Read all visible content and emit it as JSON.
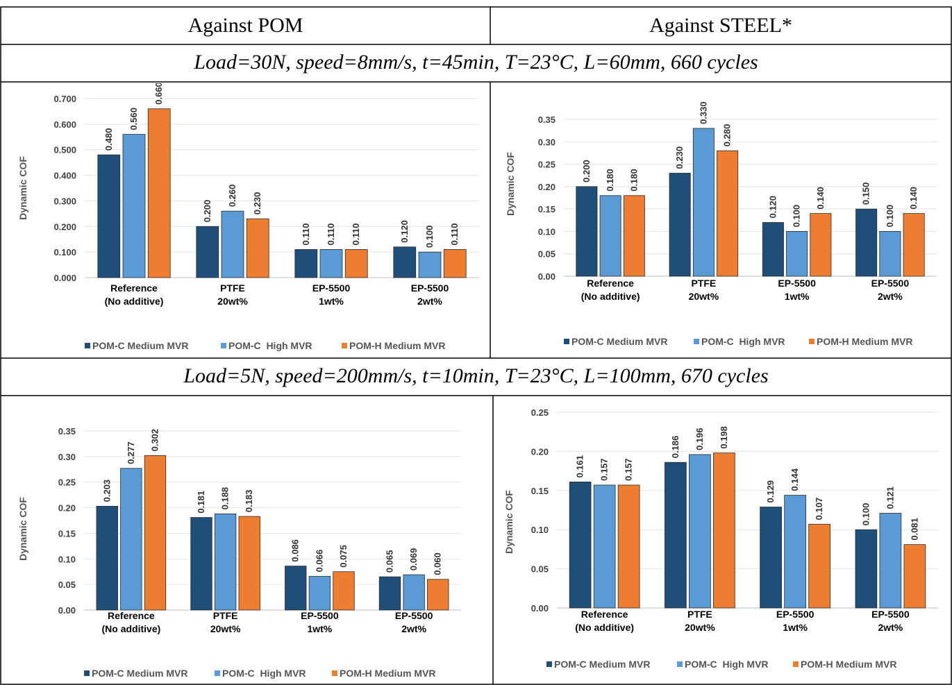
{
  "headers": {
    "left": "Against POM",
    "right": "Against STEEL*"
  },
  "conditions": [
    "Load=30N, speed=8mm/s, t=45min, T=23°C, L=60mm, 660 cycles",
    "Load=5N, speed=200mm/s, t=10min, T=23°C, L=100mm, 670 cycles"
  ],
  "colors": {
    "POM-C Medium MVR": "#1f4e79",
    "POM-C  High MVR": "#5b9bd5",
    "POM-H Medium MVR": "#ed7d31"
  },
  "chart_data": [
    {
      "type": "bar",
      "ylabel": "Dynamic COF",
      "ylim": [
        0,
        0.7
      ],
      "yticks": [
        "0.000",
        "0.100",
        "0.200",
        "0.300",
        "0.400",
        "0.500",
        "0.600",
        "0.700"
      ],
      "decimals": 3,
      "categories": [
        [
          "Reference",
          "(No additive)"
        ],
        [
          "PTFE",
          "20wt%"
        ],
        [
          "EP-5500",
          "1wt%"
        ],
        [
          "EP-5500",
          "2wt%"
        ]
      ],
      "series": [
        {
          "name": "POM-C Medium MVR",
          "values": [
            0.48,
            0.2,
            0.11,
            0.12
          ]
        },
        {
          "name": "POM-C  High MVR",
          "values": [
            0.56,
            0.26,
            0.11,
            0.1
          ]
        },
        {
          "name": "POM-H Medium MVR",
          "values": [
            0.66,
            0.23,
            0.11,
            0.11
          ]
        }
      ],
      "legend": "bottom"
    },
    {
      "type": "bar",
      "ylabel": "Dynamic COF",
      "ylim": [
        0,
        0.35
      ],
      "yticks": [
        "0.00",
        "0.05",
        "0.10",
        "0.15",
        "0.20",
        "0.25",
        "0.30",
        "0.35"
      ],
      "decimals": 3,
      "categories": [
        [
          "Reference",
          "(No additive)"
        ],
        [
          "PTFE",
          "20wt%"
        ],
        [
          "EP-5500",
          "1wt%"
        ],
        [
          "EP-5500",
          "2wt%"
        ]
      ],
      "series": [
        {
          "name": "POM-C Medium MVR",
          "values": [
            0.2,
            0.23,
            0.12,
            0.15
          ]
        },
        {
          "name": "POM-C  High MVR",
          "values": [
            0.18,
            0.33,
            0.1,
            0.1
          ]
        },
        {
          "name": "POM-H Medium MVR",
          "values": [
            0.18,
            0.28,
            0.14,
            0.14
          ]
        }
      ],
      "legend": "bottom"
    },
    {
      "type": "bar",
      "ylabel": "Dynamic COF",
      "ylim": [
        0,
        0.35
      ],
      "yticks": [
        "0.00",
        "0.05",
        "0.10",
        "0.15",
        "0.20",
        "0.25",
        "0.30",
        "0.35"
      ],
      "decimals": 3,
      "categories": [
        [
          "Reference",
          "(No additive)"
        ],
        [
          "PTFE",
          "20wt%"
        ],
        [
          "EP-5500",
          "1wt%"
        ],
        [
          "EP-5500",
          "2wt%"
        ]
      ],
      "series": [
        {
          "name": "POM-C Medium MVR",
          "values": [
            0.203,
            0.181,
            0.086,
            0.065
          ]
        },
        {
          "name": "POM-C  High MVR",
          "values": [
            0.277,
            0.188,
            0.066,
            0.069
          ]
        },
        {
          "name": "POM-H Medium MVR",
          "values": [
            0.302,
            0.183,
            0.075,
            0.06
          ]
        }
      ],
      "legend": "bottom"
    },
    {
      "type": "bar",
      "ylabel": "Dynamic COF",
      "ylim": [
        0,
        0.25
      ],
      "yticks": [
        "0.00",
        "0.05",
        "0.10",
        "0.15",
        "0.20",
        "0.25"
      ],
      "decimals": 3,
      "categories": [
        [
          "Reference",
          "(No additive)"
        ],
        [
          "PTFE",
          "20wt%"
        ],
        [
          "EP-5500",
          "1wt%"
        ],
        [
          "EP-5500",
          "2wt%"
        ]
      ],
      "series": [
        {
          "name": "POM-C Medium MVR",
          "values": [
            0.161,
            0.186,
            0.129,
            0.1
          ]
        },
        {
          "name": "POM-C  High MVR",
          "values": [
            0.157,
            0.196,
            0.144,
            0.121
          ]
        },
        {
          "name": "POM-H Medium MVR",
          "values": [
            0.157,
            0.198,
            0.107,
            0.081
          ]
        }
      ],
      "legend": "bottom"
    }
  ]
}
